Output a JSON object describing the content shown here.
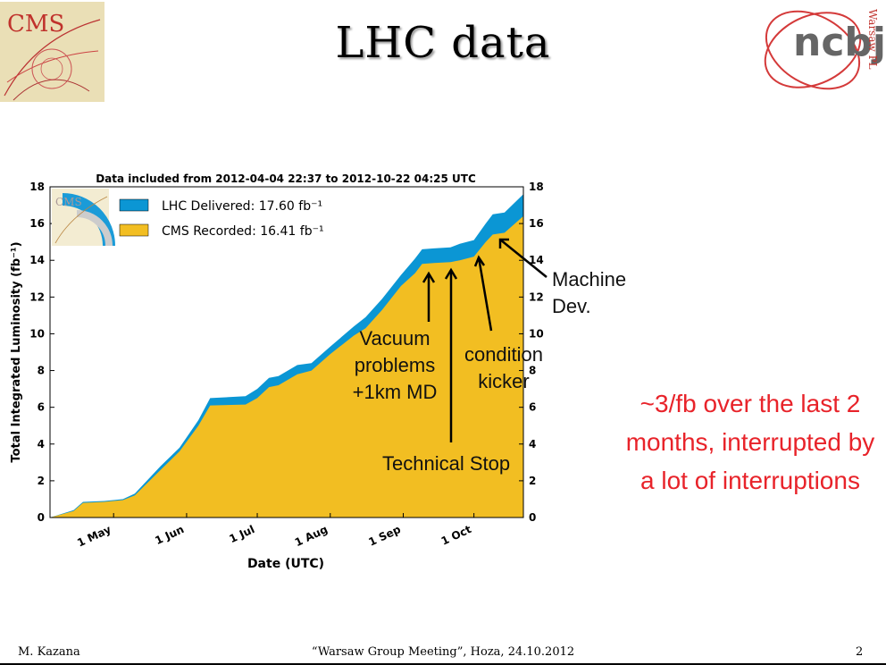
{
  "slide": {
    "title": "LHC data",
    "logos": {
      "left_text": "CMS",
      "right_text": "Warsaw PL",
      "right_mark": "ncbj"
    },
    "note": "~3/fb over the last 2 months, interrupted by a lot of interruptions",
    "annotations": {
      "machine_dev": [
        "Machine",
        "Dev."
      ],
      "vacuum": [
        "Vacuum",
        "problems",
        "+1km MD"
      ],
      "condition": [
        "condition",
        "kicker"
      ],
      "tech_stop": "Technical Stop"
    },
    "footer": {
      "author": "M. Kazana",
      "meeting": "“Warsaw Group Meeting”, Hoza, 24.10.2012",
      "page": "2"
    }
  },
  "chart_data": {
    "type": "area",
    "title": "Data included from 2012-04-04 22:37 to 2012-10-22 04:25 UTC",
    "xlabel": "Date (UTC)",
    "ylabel": "Total Integrated Luminosity (fb⁻¹)",
    "xlim": [
      "2012-04-04",
      "2012-10-22"
    ],
    "ylim": [
      0,
      18
    ],
    "y_ticks": [
      0,
      2,
      4,
      6,
      8,
      10,
      12,
      14,
      16,
      18
    ],
    "x_ticks": [
      {
        "date": "2012-05-01",
        "label": "1 May"
      },
      {
        "date": "2012-06-01",
        "label": "1 Jun"
      },
      {
        "date": "2012-07-01",
        "label": "1 Jul"
      },
      {
        "date": "2012-08-01",
        "label": "1 Aug"
      },
      {
        "date": "2012-09-01",
        "label": "1 Sep"
      },
      {
        "date": "2012-10-01",
        "label": "1 Oct"
      }
    ],
    "legend_position": "top-left",
    "grid": false,
    "series": [
      {
        "name": "LHC Delivered: 17.60 fb⁻¹",
        "color": "#0b96d4",
        "points": [
          [
            "2012-04-04",
            0
          ],
          [
            "2012-04-14",
            0.4
          ],
          [
            "2012-04-18",
            0.85
          ],
          [
            "2012-04-27",
            0.9
          ],
          [
            "2012-05-05",
            1.0
          ],
          [
            "2012-05-10",
            1.3
          ],
          [
            "2012-05-21",
            2.8
          ],
          [
            "2012-05-29",
            3.8
          ],
          [
            "2012-06-06",
            5.3
          ],
          [
            "2012-06-11",
            6.5
          ],
          [
            "2012-06-26",
            6.6
          ],
          [
            "2012-07-01",
            7.0
          ],
          [
            "2012-07-06",
            7.6
          ],
          [
            "2012-07-10",
            7.7
          ],
          [
            "2012-07-18",
            8.3
          ],
          [
            "2012-07-24",
            8.4
          ],
          [
            "2012-08-01",
            9.3
          ],
          [
            "2012-08-11",
            10.4
          ],
          [
            "2012-08-16",
            10.9
          ],
          [
            "2012-08-23",
            11.9
          ],
          [
            "2012-08-31",
            13.2
          ],
          [
            "2012-09-06",
            14.1
          ],
          [
            "2012-09-09",
            14.6
          ],
          [
            "2012-09-14",
            14.65
          ],
          [
            "2012-09-21",
            14.7
          ],
          [
            "2012-09-25",
            14.9
          ],
          [
            "2012-10-01",
            15.1
          ],
          [
            "2012-10-06",
            16.0
          ],
          [
            "2012-10-09",
            16.5
          ],
          [
            "2012-10-14",
            16.6
          ],
          [
            "2012-10-22",
            17.6
          ]
        ]
      },
      {
        "name": "CMS Recorded: 16.41 fb⁻¹",
        "color": "#f2be22",
        "points": [
          [
            "2012-04-04",
            0
          ],
          [
            "2012-04-14",
            0.35
          ],
          [
            "2012-04-18",
            0.8
          ],
          [
            "2012-04-27",
            0.85
          ],
          [
            "2012-05-05",
            0.95
          ],
          [
            "2012-05-10",
            1.2
          ],
          [
            "2012-05-21",
            2.6
          ],
          [
            "2012-05-29",
            3.6
          ],
          [
            "2012-06-06",
            5.0
          ],
          [
            "2012-06-11",
            6.1
          ],
          [
            "2012-06-26",
            6.15
          ],
          [
            "2012-07-01",
            6.5
          ],
          [
            "2012-07-06",
            7.1
          ],
          [
            "2012-07-10",
            7.2
          ],
          [
            "2012-07-18",
            7.8
          ],
          [
            "2012-07-24",
            8.0
          ],
          [
            "2012-08-01",
            8.9
          ],
          [
            "2012-08-11",
            9.9
          ],
          [
            "2012-08-16",
            10.3
          ],
          [
            "2012-08-23",
            11.3
          ],
          [
            "2012-08-31",
            12.6
          ],
          [
            "2012-09-06",
            13.3
          ],
          [
            "2012-09-09",
            13.8
          ],
          [
            "2012-09-14",
            13.85
          ],
          [
            "2012-09-21",
            13.9
          ],
          [
            "2012-09-25",
            14.0
          ],
          [
            "2012-10-01",
            14.2
          ],
          [
            "2012-10-06",
            15.0
          ],
          [
            "2012-10-09",
            15.4
          ],
          [
            "2012-10-14",
            15.5
          ],
          [
            "2012-10-22",
            16.41
          ]
        ]
      }
    ]
  },
  "colors": {
    "delivered": "#0b96d4",
    "recorded": "#f2be22",
    "note": "#e8232a"
  }
}
